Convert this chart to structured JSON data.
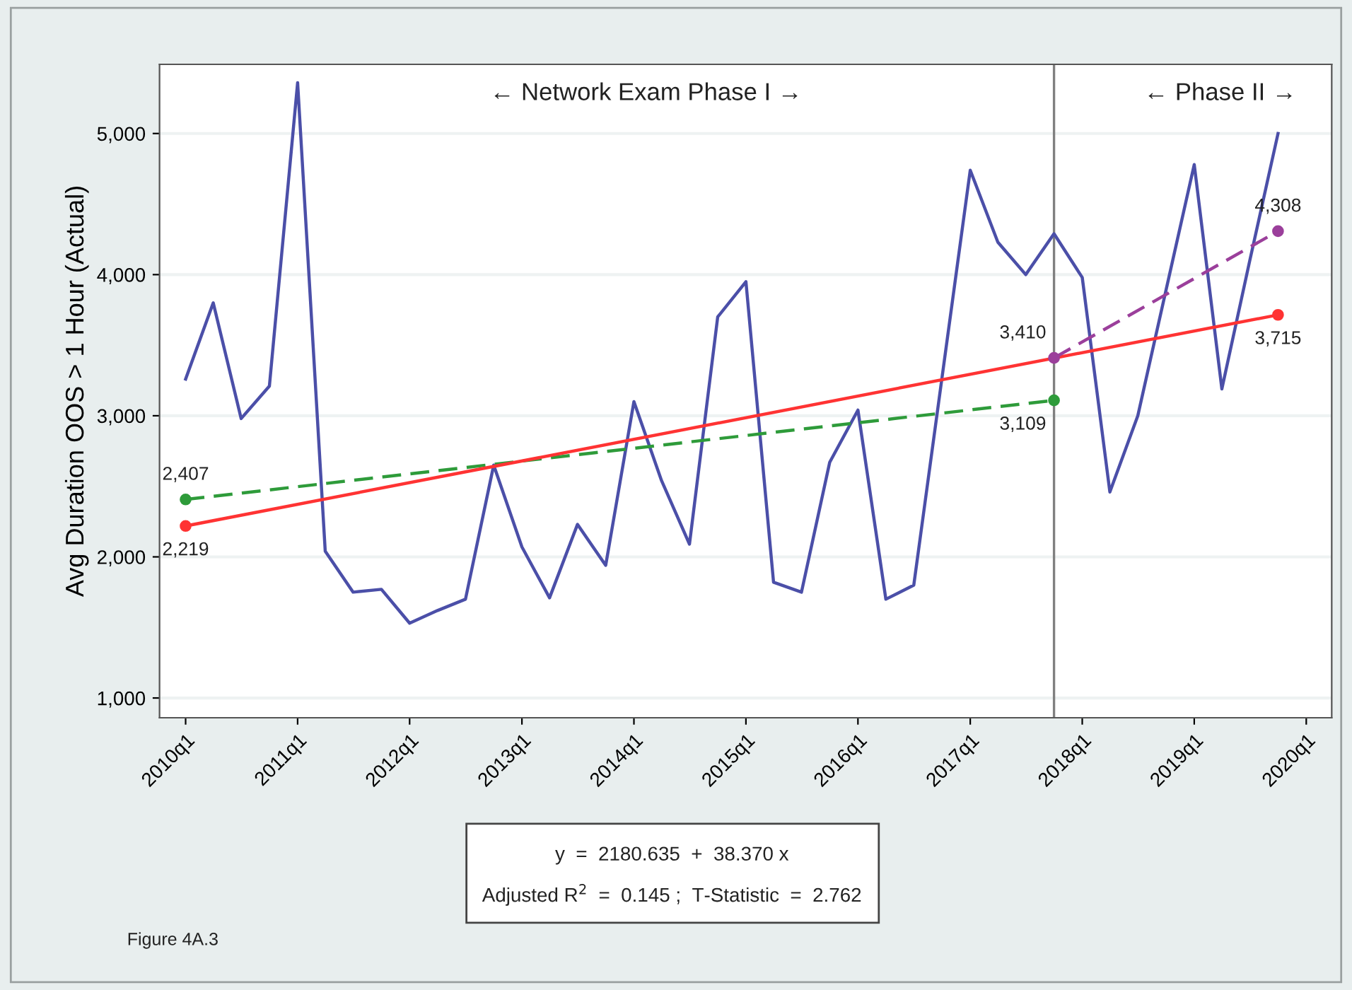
{
  "chart_data": {
    "type": "line",
    "ylabel": "Avg Duration OOS > 1 Hour (Actual)",
    "xlim": [
      "2009-10-08",
      "2020-03-24"
    ],
    "ylim": [
      860,
      5490
    ],
    "xticks": [
      {
        "value": "2010-01",
        "label": "2010q1"
      },
      {
        "value": "2011-01",
        "label": "2011q1"
      },
      {
        "value": "2012-01",
        "label": "2012q1"
      },
      {
        "value": "2013-01",
        "label": "2013q1"
      },
      {
        "value": "2014-01",
        "label": "2014q1"
      },
      {
        "value": "2015-01",
        "label": "2015q1"
      },
      {
        "value": "2016-01",
        "label": "2016q1"
      },
      {
        "value": "2017-01",
        "label": "2017q1"
      },
      {
        "value": "2018-01",
        "label": "2018q1"
      },
      {
        "value": "2019-01",
        "label": "2019q1"
      },
      {
        "value": "2020-01",
        "label": "2020q1"
      }
    ],
    "yticks": [
      {
        "value": 1000,
        "label": "1,000"
      },
      {
        "value": 2000,
        "label": "2,000"
      },
      {
        "value": 3000,
        "label": "3,000"
      },
      {
        "value": 4000,
        "label": "4,000"
      },
      {
        "value": 5000,
        "label": "5,000"
      }
    ],
    "grid": "y",
    "series": [
      {
        "color": "#4b4fa8",
        "marker": "none",
        "line_style": "solid",
        "x": [
          "2010-01",
          "2010-04",
          "2010-07",
          "2010-10",
          "2011-01",
          "2011-04",
          "2011-07",
          "2011-10",
          "2012-01",
          "2012-04",
          "2012-07",
          "2012-10",
          "2013-01",
          "2013-04",
          "2013-07",
          "2013-10",
          "2014-01",
          "2014-04",
          "2014-07",
          "2014-10",
          "2015-01",
          "2015-04",
          "2015-07",
          "2015-10",
          "2016-01",
          "2016-04",
          "2016-07",
          "2016-10",
          "2017-01",
          "2017-04",
          "2017-07",
          "2017-10",
          "2018-01",
          "2018-04",
          "2018-07",
          "2018-10",
          "2019-01",
          "2019-04",
          "2019-07",
          "2019-10"
        ],
        "values": [
          3260,
          3800,
          2980,
          3210,
          5360,
          2040,
          1750,
          1770,
          1530,
          1620,
          1700,
          2650,
          2070,
          1710,
          2230,
          1940,
          3100,
          2540,
          2090,
          3700,
          3950,
          1820,
          1750,
          2670,
          3040,
          1700,
          1800,
          3270,
          4740,
          4230,
          4000,
          4290,
          3980,
          2460,
          3000,
          3890,
          4780,
          3190,
          4100,
          5000
        ]
      },
      {
        "color": "#2e9b3a",
        "marker": "circle",
        "line_style": "dashed",
        "x": [
          "2010-01",
          "2017-10"
        ],
        "values": [
          2407,
          3109
        ]
      },
      {
        "color": "#ff3333",
        "marker": "circle",
        "line_style": "solid",
        "x": [
          "2010-01",
          "2019-10"
        ],
        "values": [
          2219,
          3715
        ]
      },
      {
        "color": "#9b3f9b",
        "marker": "circle",
        "line_style": "dashed",
        "x": [
          "2017-10",
          "2019-10"
        ],
        "values": [
          3410,
          4308
        ]
      }
    ],
    "ref_lines": [
      {
        "axis": "x",
        "value": "2017-10",
        "color": "#808080"
      }
    ],
    "annotations": [
      "← Network Exam Phase I →",
      "← Phase II →",
      "y  =  2180.635  +  38.370 x",
      "Adjusted R$^{2}$  =  0.145 ;  T-Statistic  =  2.762",
      "Figure 4A.3",
      {
        "text": "2,407",
        "x": "2010-01",
        "y": 2407
      },
      {
        "text": "2,219",
        "x": "2010-01",
        "y": 2219
      },
      {
        "text": "3,410",
        "x": "2017-10",
        "y": 3410
      },
      {
        "text": "3,109",
        "x": "2017-10",
        "y": 3109
      },
      {
        "text": "4,308",
        "x": "2019-10",
        "y": 4308
      },
      {
        "text": "3,715",
        "x": "2019-10",
        "y": 3715
      }
    ]
  }
}
